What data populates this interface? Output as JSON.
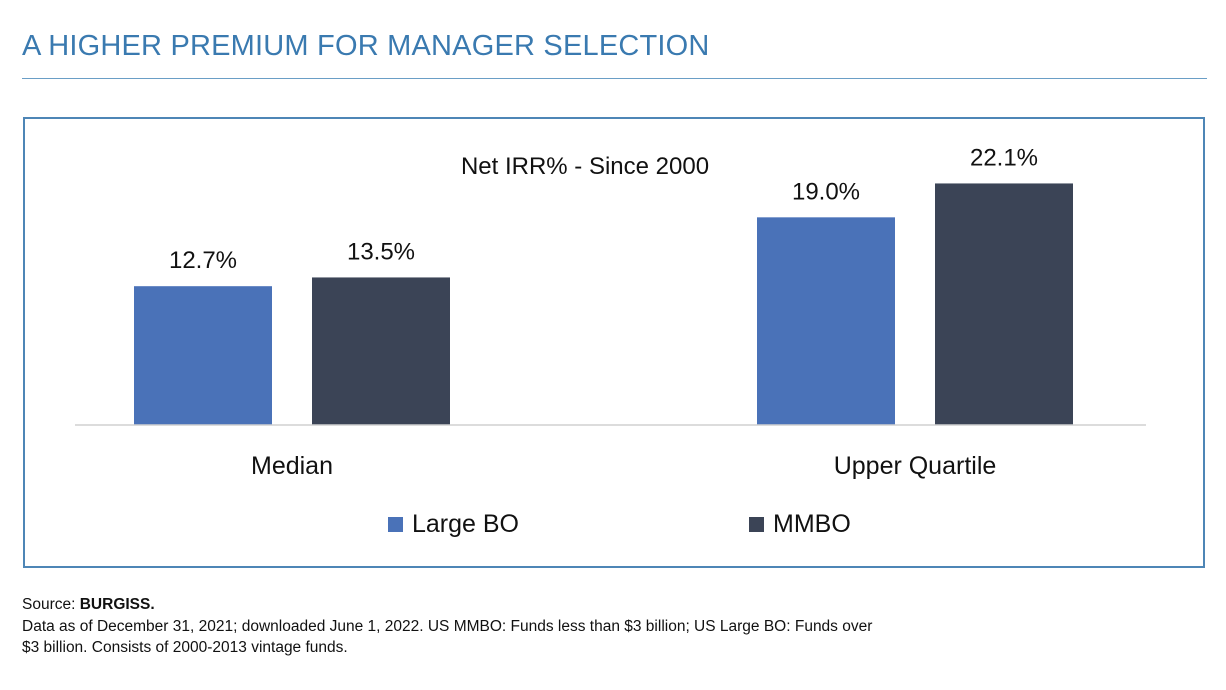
{
  "heading": "A HIGHER PREMIUM FOR MANAGER SELECTION",
  "source": {
    "label": "Source: ",
    "name": "BURGISS.",
    "note_line1": "Data as of December 31, 2021; downloaded June 1, 2022. US MMBO: Funds less than $3 billion; US Large BO: Funds over",
    "note_line2": "$3 billion. Consists of 2000-2013 vintage funds."
  },
  "chart_data": {
    "type": "bar",
    "title": "Net IRR% - Since 2000",
    "categories": [
      "Median",
      "Upper Quartile"
    ],
    "series": [
      {
        "name": "Large BO",
        "values": [
          12.7,
          19.0
        ],
        "labels": [
          "12.7%",
          "19.0%"
        ],
        "color": "#4a72b8"
      },
      {
        "name": "MMBO",
        "values": [
          13.5,
          22.1
        ],
        "labels": [
          "13.5%",
          "22.1%"
        ],
        "color": "#3b4456"
      }
    ],
    "xlabel": "",
    "ylabel": "",
    "ylim": [
      0,
      25
    ],
    "grid": false,
    "legend": "bottom"
  }
}
